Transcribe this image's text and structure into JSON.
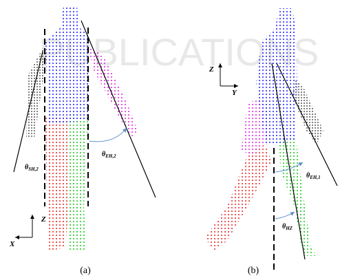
{
  "watermark": "PUBLICATIONS",
  "panels": [
    {
      "caption": "(a)",
      "axes": {
        "vertical": "Z",
        "horizontal": "X"
      },
      "angles": [
        {
          "symbol": "θ",
          "subscript": "SH,2"
        },
        {
          "symbol": "θ",
          "subscript": "EH,2"
        }
      ]
    },
    {
      "caption": "(b)",
      "axes": {
        "vertical": "Z",
        "horizontal": "Y"
      },
      "angles": [
        {
          "symbol": "θ",
          "subscript": "EH,1"
        },
        {
          "symbol": "θ",
          "subscript": "HZ"
        }
      ]
    }
  ]
}
